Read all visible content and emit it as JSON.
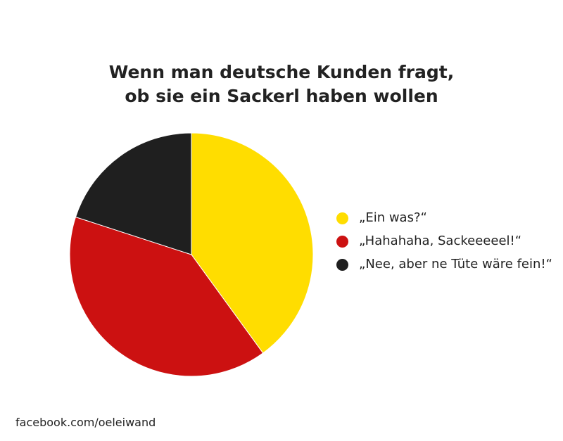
{
  "chart_data": {
    "type": "pie",
    "title": [
      "Wenn man deutsche Kunden fragt,",
      "ob sie ein Sackerl haben wollen"
    ],
    "slices": [
      {
        "label": "„Ein was?“",
        "value": 40,
        "color": "#FFDD00"
      },
      {
        "label": "„Hahahaha, Sackeeeeel!“",
        "value": 40,
        "color": "#CC1111"
      },
      {
        "label": "„Nee, aber ne Tüte wäre fein!“",
        "value": 20,
        "color": "#1F1F1F"
      }
    ],
    "start_angle_deg": 0,
    "direction": "clockwise",
    "legend_position": "right"
  },
  "footer": {
    "text": "facebook.com/oeleiwand"
  }
}
